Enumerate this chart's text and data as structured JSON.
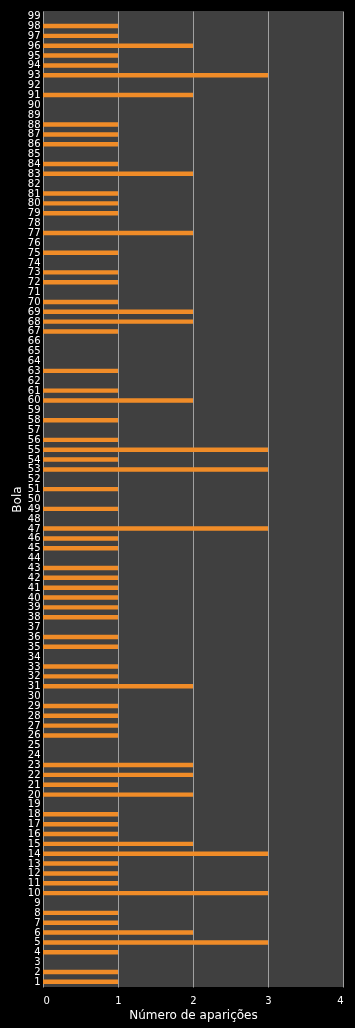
{
  "chart_data": {
    "type": "bar",
    "orientation": "horizontal",
    "xlabel": "Número  de aparições",
    "ylabel": "Bola",
    "categories": [
      "99",
      "98",
      "97",
      "96",
      "95",
      "94",
      "93",
      "92",
      "91",
      "90",
      "89",
      "88",
      "87",
      "86",
      "85",
      "84",
      "83",
      "82",
      "81",
      "80",
      "79",
      "78",
      "77",
      "76",
      "75",
      "74",
      "73",
      "72",
      "71",
      "70",
      "69",
      "68",
      "67",
      "66",
      "65",
      "64",
      "63",
      "62",
      "61",
      "60",
      "59",
      "58",
      "57",
      "56",
      "55",
      "54",
      "53",
      "52",
      "51",
      "50",
      "49",
      "48",
      "47",
      "46",
      "45",
      "44",
      "43",
      "42",
      "41",
      "40",
      "39",
      "38",
      "37",
      "36",
      "35",
      "34",
      "33",
      "32",
      "31",
      "30",
      "29",
      "28",
      "27",
      "26",
      "25",
      "24",
      "23",
      "22",
      "21",
      "20",
      "19",
      "18",
      "17",
      "16",
      "15",
      "14",
      "13",
      "12",
      "11",
      "10",
      "9",
      "8",
      "7",
      "6",
      "5",
      "4",
      "3",
      "2",
      "1"
    ],
    "values": [
      0,
      1,
      1,
      2,
      1,
      1,
      3,
      0,
      2,
      0,
      0,
      1,
      1,
      1,
      0,
      1,
      2,
      0,
      1,
      1,
      1,
      0,
      2,
      0,
      1,
      0,
      1,
      1,
      0,
      1,
      2,
      2,
      1,
      0,
      0,
      0,
      1,
      0,
      1,
      2,
      0,
      1,
      0,
      1,
      3,
      1,
      3,
      0,
      1,
      0,
      1,
      0,
      3,
      1,
      1,
      0,
      1,
      1,
      1,
      1,
      1,
      1,
      0,
      1,
      1,
      0,
      1,
      1,
      2,
      0,
      1,
      1,
      1,
      1,
      0,
      0,
      2,
      2,
      1,
      2,
      0,
      1,
      1,
      1,
      2,
      3,
      1,
      1,
      1,
      3,
      0,
      1,
      1,
      2,
      3,
      1,
      0,
      1,
      1
    ],
    "color": "#f08c28",
    "xlim": [
      0,
      4
    ],
    "xticks": [
      0,
      1,
      2,
      3,
      4
    ],
    "grid": "x"
  }
}
